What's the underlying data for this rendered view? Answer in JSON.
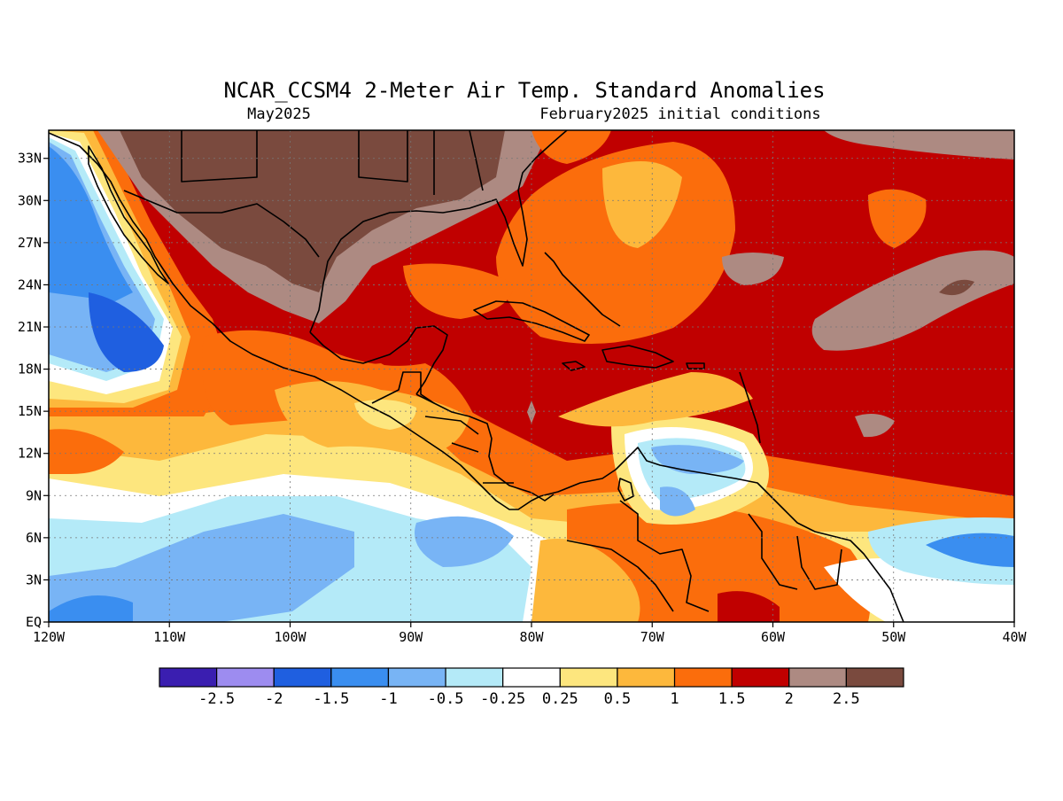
{
  "title": "NCAR_CCSM4 2-Meter Air Temp. Standard Anomalies",
  "subtitle_left": "May2025",
  "subtitle_right": "February2025 initial conditions",
  "map": {
    "lon_range": [
      -120,
      -40
    ],
    "lat_range": [
      0,
      35
    ],
    "x_ticks": [
      {
        "value": -120,
        "label": "120W"
      },
      {
        "value": -110,
        "label": "110W"
      },
      {
        "value": -100,
        "label": "100W"
      },
      {
        "value": -90,
        "label": "90W"
      },
      {
        "value": -80,
        "label": "80W"
      },
      {
        "value": -70,
        "label": "70W"
      },
      {
        "value": -60,
        "label": "60W"
      },
      {
        "value": -50,
        "label": "50W"
      },
      {
        "value": -40,
        "label": "40W"
      }
    ],
    "y_ticks": [
      {
        "value": 0,
        "label": "EQ"
      },
      {
        "value": 3,
        "label": "3N"
      },
      {
        "value": 6,
        "label": "6N"
      },
      {
        "value": 9,
        "label": "9N"
      },
      {
        "value": 12,
        "label": "12N"
      },
      {
        "value": 15,
        "label": "15N"
      },
      {
        "value": 18,
        "label": "18N"
      },
      {
        "value": 21,
        "label": "21N"
      },
      {
        "value": 24,
        "label": "24N"
      },
      {
        "value": 27,
        "label": "27N"
      },
      {
        "value": 30,
        "label": "30N"
      },
      {
        "value": 33,
        "label": "33N"
      }
    ],
    "gridlines": true
  },
  "colorbar": {
    "colors": [
      "#3a1eb0",
      "#9d8cf0",
      "#1f5fe0",
      "#3a8ef0",
      "#78b4f5",
      "#b4eaf8",
      "#ffffff",
      "#fde67e",
      "#fdb83c",
      "#fb6d0c",
      "#c00000",
      "#ad8a82",
      "#7a4a3e"
    ],
    "labels": [
      "-2.5",
      "-2",
      "-1.5",
      "-1",
      "-0.5",
      "-0.25",
      "0.25",
      "0.5",
      "1",
      "1.5",
      "2",
      "2.5"
    ]
  }
}
